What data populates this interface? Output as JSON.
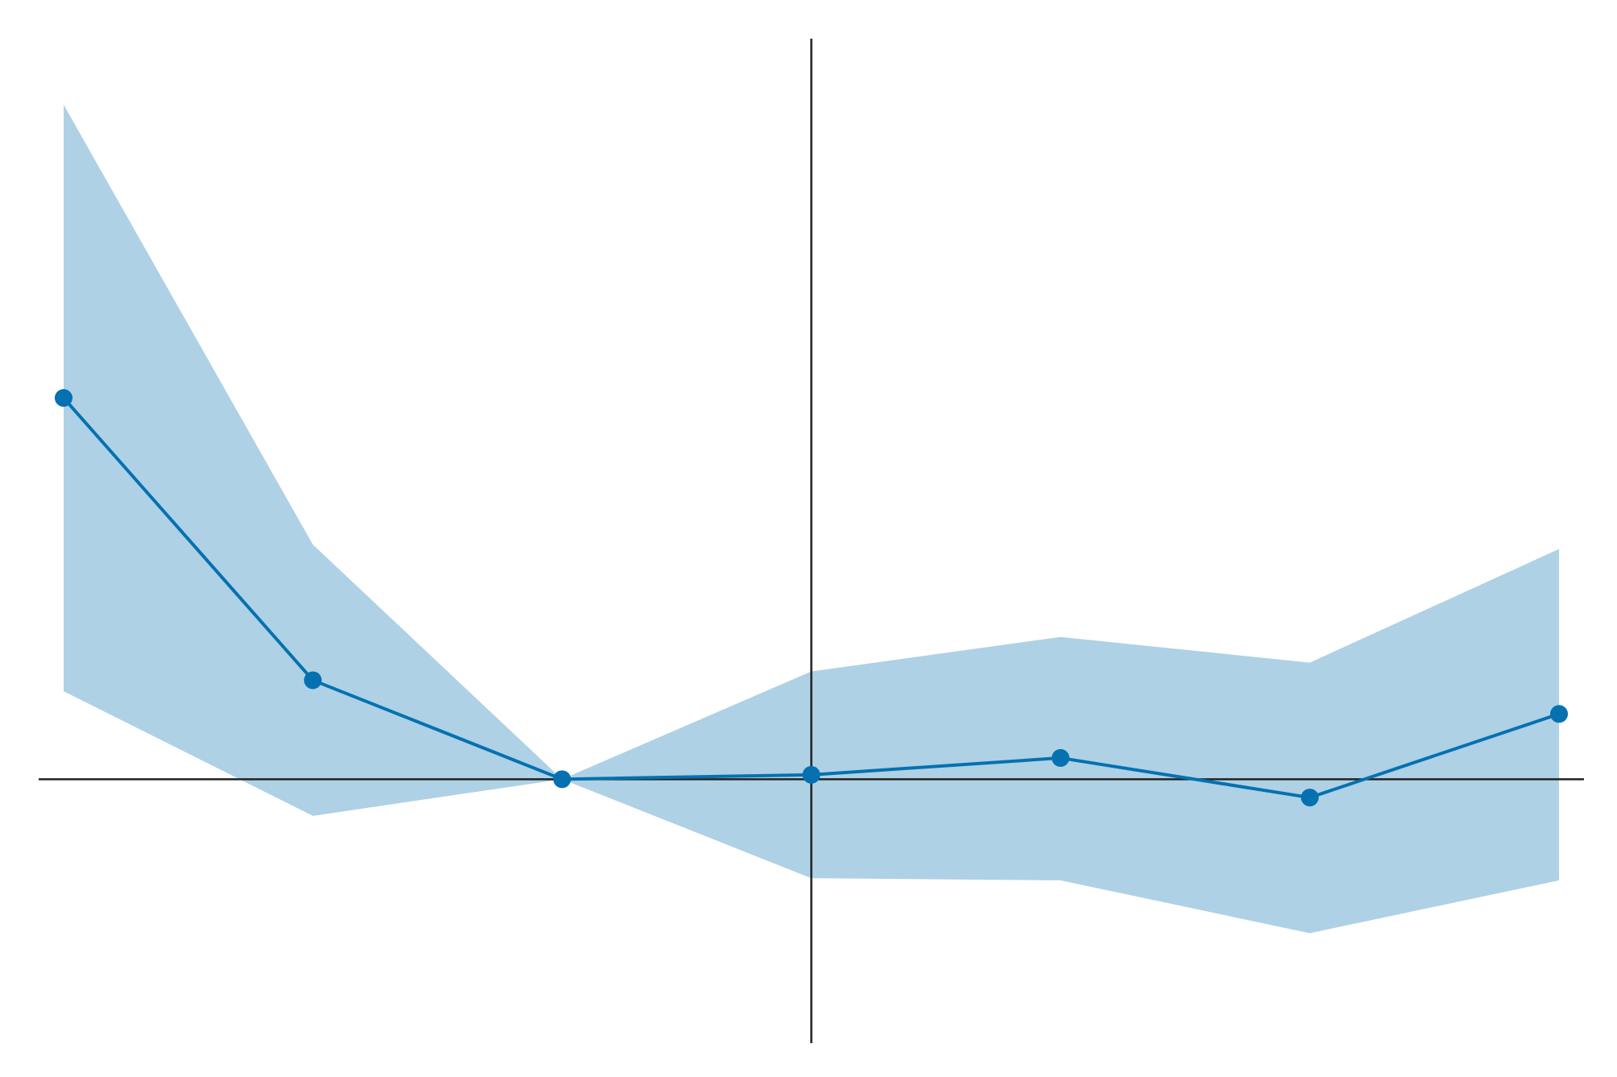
{
  "chart_data": {
    "type": "line",
    "title": "",
    "xlabel": "",
    "ylabel": "",
    "x": [
      -3,
      -2,
      -1,
      0,
      1,
      2,
      3
    ],
    "series": [
      {
        "values": [
          0.52,
          0.135,
          0.0,
          0.006,
          0.029,
          -0.025,
          0.089
        ],
        "ci_lower": [
          0.12,
          -0.05,
          0.0,
          -0.135,
          -0.138,
          -0.21,
          -0.138
        ],
        "ci_upper": [
          0.92,
          0.32,
          0.0,
          0.147,
          0.194,
          0.159,
          0.314
        ]
      }
    ],
    "xlim": [
      -3.1,
      3.1
    ],
    "ylim": [
      -0.36,
      1.01
    ],
    "reference_lines": {
      "horizontal_y": 0,
      "vertical_x": 0
    },
    "grid": false,
    "colors": {
      "line": "#0571b0",
      "band": "#aed1e5",
      "reference": "#222222"
    }
  }
}
